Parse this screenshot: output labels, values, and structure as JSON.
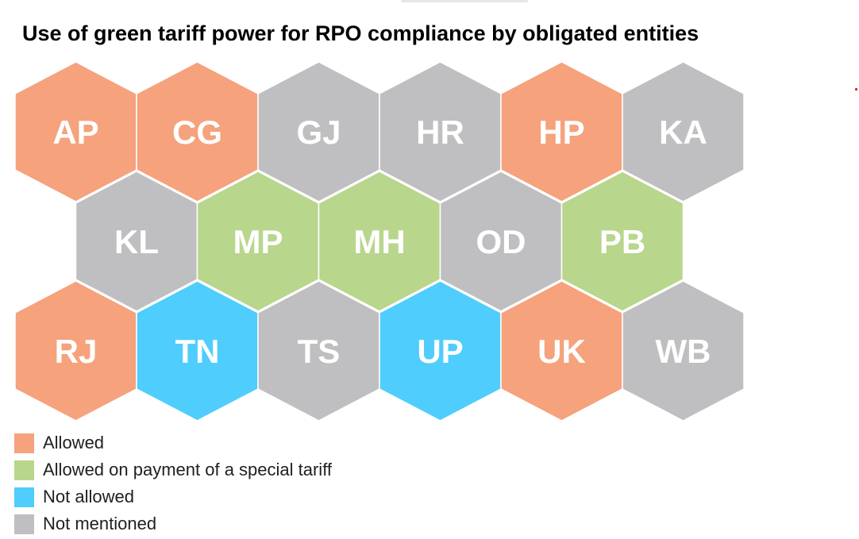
{
  "title": "Use of green tariff power for RPO compliance by obligated entities",
  "categories": {
    "allowed": {
      "label": "Allowed",
      "color": "#f5a27d"
    },
    "special": {
      "label": "Allowed on payment of a special tariff",
      "color": "#b8d68c"
    },
    "not_allowed": {
      "label": "Not allowed",
      "color": "#4fcdfc"
    },
    "not_mentioned": {
      "label": "Not mentioned",
      "color": "#bfbfc1"
    }
  },
  "legend": [
    {
      "key": "allowed",
      "label": "Allowed"
    },
    {
      "key": "special",
      "label": "Allowed on payment of a special tariff"
    },
    {
      "key": "not_allowed",
      "label": "Not allowed"
    },
    {
      "key": "not_mentioned",
      "label": "Not mentioned"
    }
  ],
  "rows": [
    [
      {
        "code": "AP",
        "status": "allowed"
      },
      {
        "code": "CG",
        "status": "allowed"
      },
      {
        "code": "GJ",
        "status": "not_mentioned"
      },
      {
        "code": "HR",
        "status": "not_mentioned"
      },
      {
        "code": "HP",
        "status": "allowed"
      },
      {
        "code": "KA",
        "status": "not_mentioned"
      }
    ],
    [
      {
        "code": "KL",
        "status": "not_mentioned"
      },
      {
        "code": "MP",
        "status": "special"
      },
      {
        "code": "MH",
        "status": "special"
      },
      {
        "code": "OD",
        "status": "not_mentioned"
      },
      {
        "code": "PB",
        "status": "special"
      }
    ],
    [
      {
        "code": "RJ",
        "status": "allowed"
      },
      {
        "code": "TN",
        "status": "not_allowed"
      },
      {
        "code": "TS",
        "status": "not_mentioned"
      },
      {
        "code": "UP",
        "status": "not_allowed"
      },
      {
        "code": "UK",
        "status": "allowed"
      },
      {
        "code": "WB",
        "status": "not_mentioned"
      }
    ]
  ]
}
